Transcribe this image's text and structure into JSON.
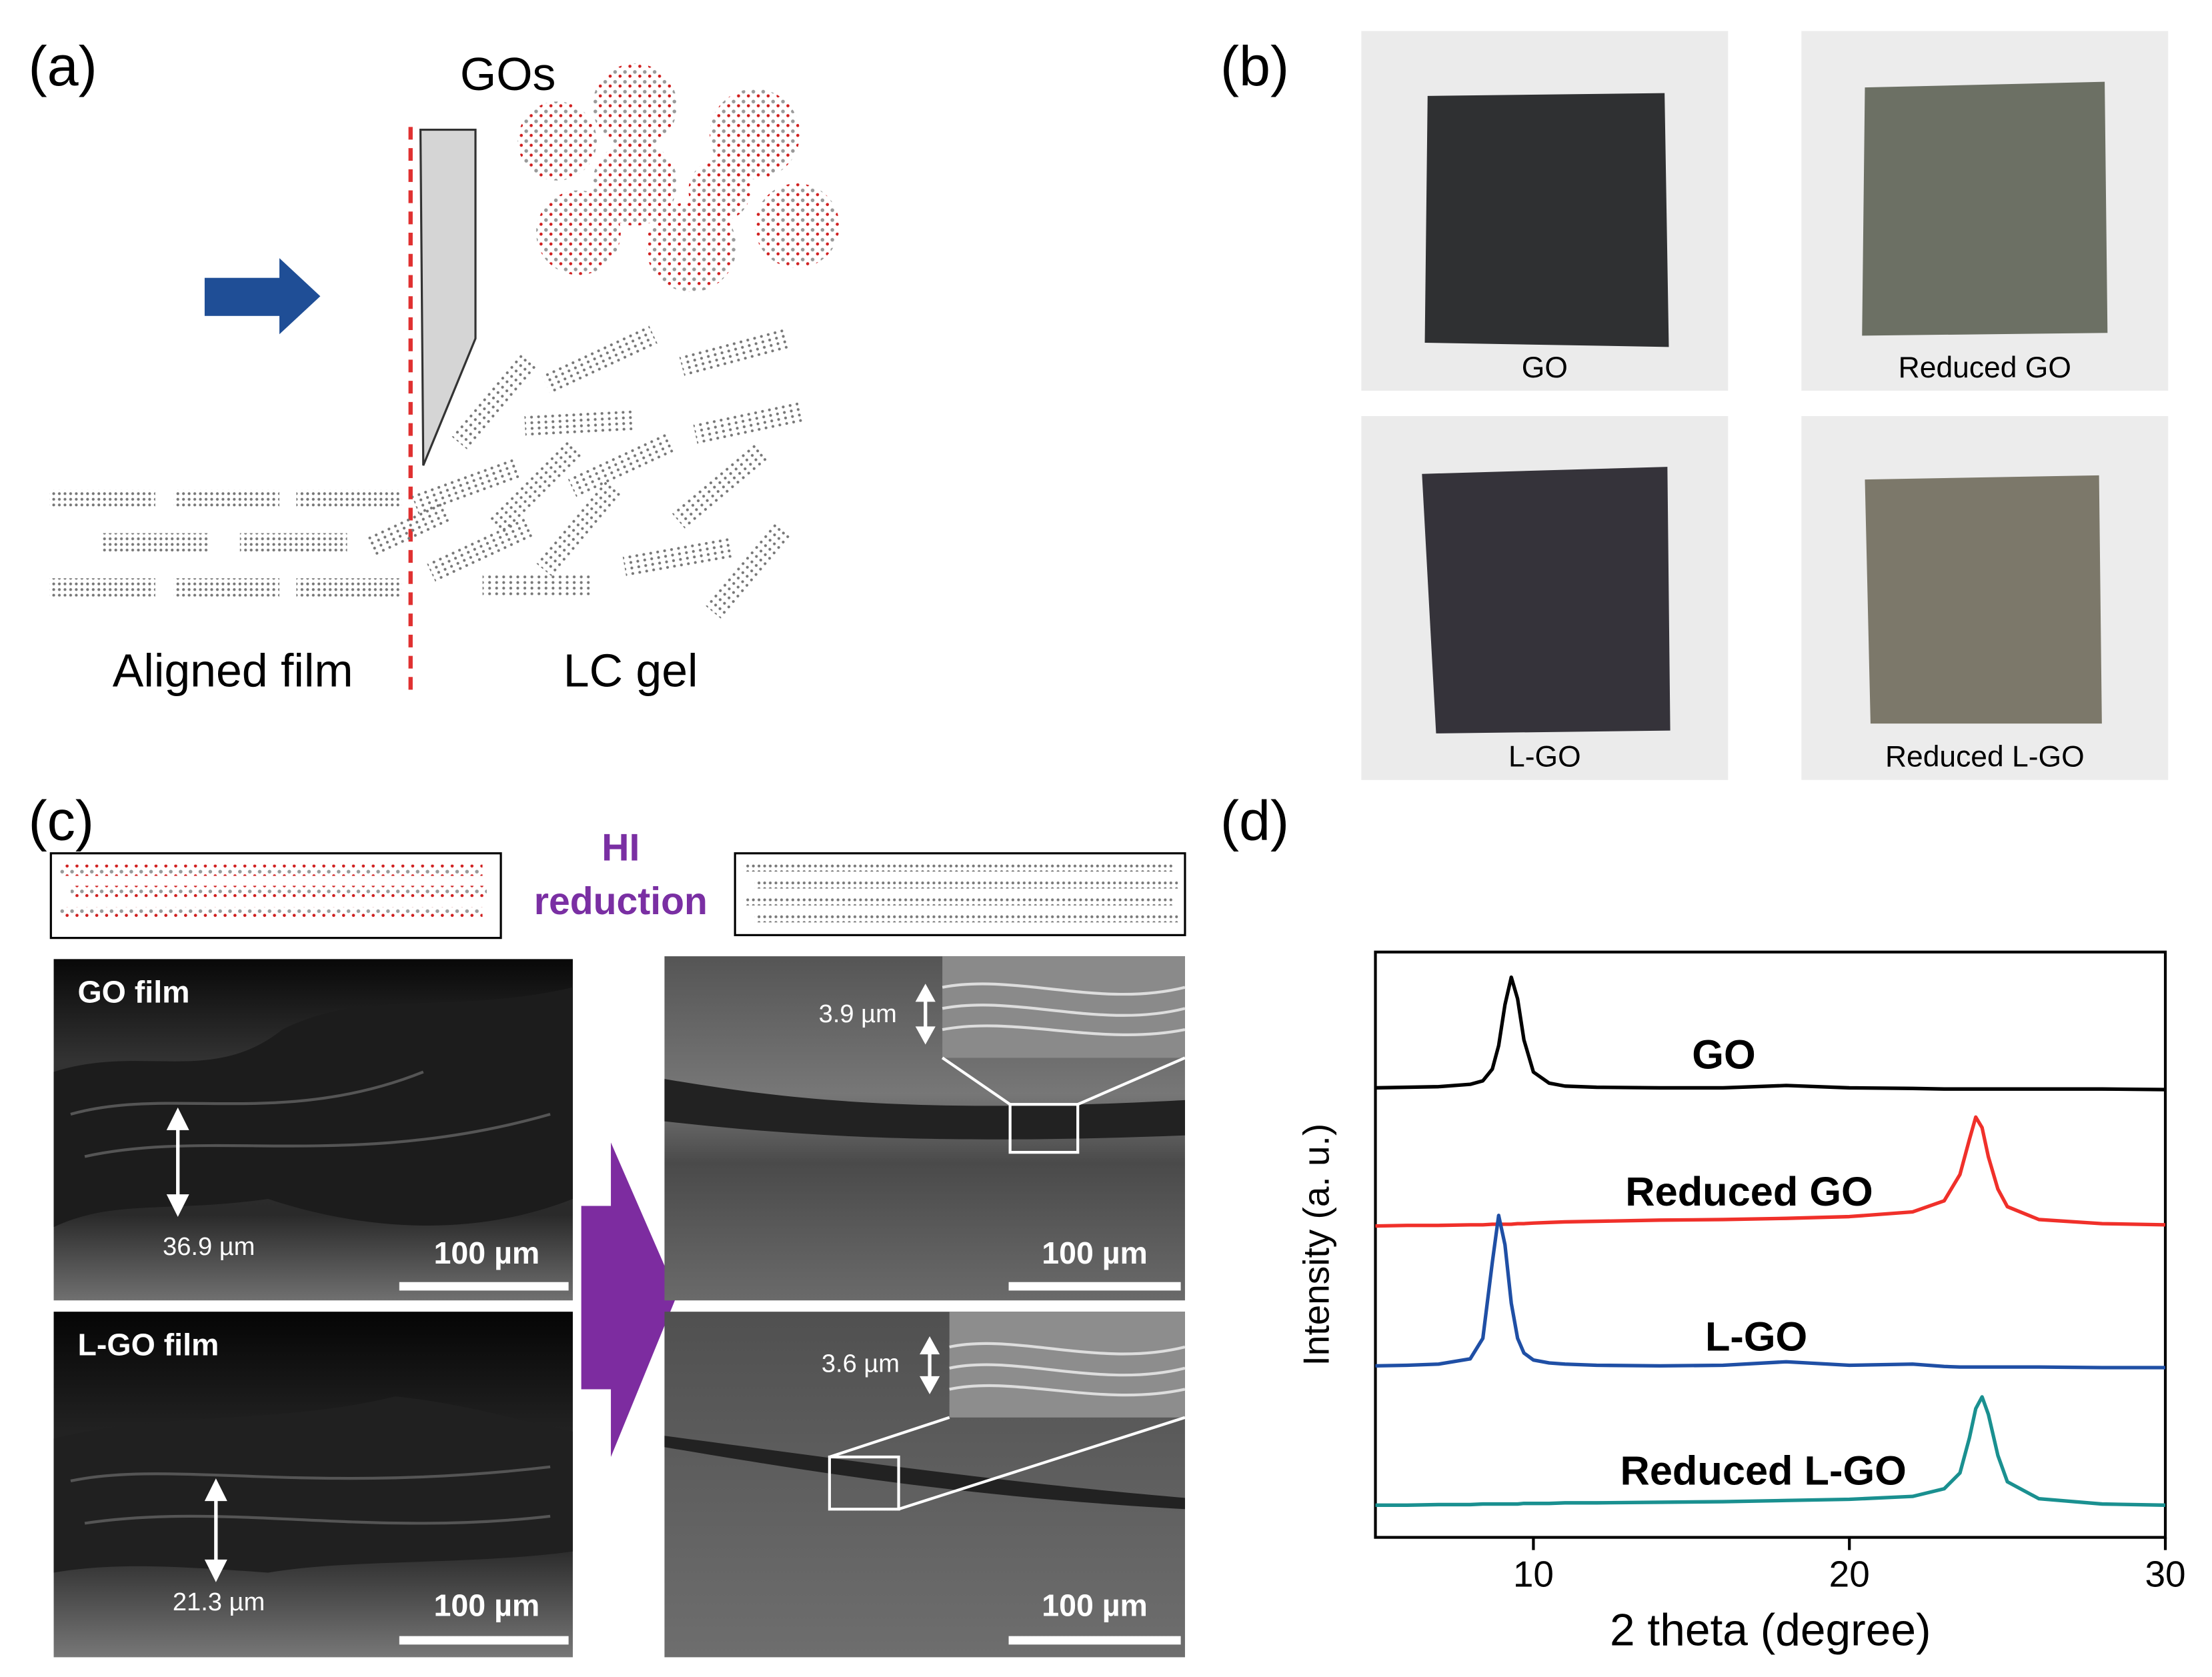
{
  "panel_labels": [
    "(a)",
    "(b)",
    "(c)",
    "(d)"
  ],
  "panel_a": {
    "top_label": "GOs",
    "left_label": "Aligned film",
    "right_label": "LC gel"
  },
  "panel_b": {
    "photos": [
      "GO",
      "Reduced GO",
      "L-GO",
      "Reduced L-GO"
    ]
  },
  "panel_c": {
    "process": [
      "HI",
      "reduction"
    ],
    "images": [
      {
        "title": "GO film",
        "thickness": "36.9 µm",
        "scale": "100 µm"
      },
      {
        "title": "L-GO film",
        "thickness": "21.3 µm",
        "scale": "100 µm"
      },
      {
        "thickness": "3.9 µm",
        "scale": "100 µm"
      },
      {
        "thickness": "3.6 µm",
        "scale": "100 µm"
      }
    ]
  },
  "chart_data": {
    "type": "line",
    "xlabel": "2 theta (degree)",
    "ylabel": "Intensity (a. u.)",
    "xlim": [
      5,
      30
    ],
    "xticks": [
      10,
      20,
      30
    ],
    "ylim": [
      0,
      100
    ],
    "x": [
      5,
      6,
      7,
      8,
      8.4,
      8.7,
      8.9,
      9.1,
      9.3,
      9.5,
      9.7,
      10,
      10.5,
      11,
      12,
      14,
      16,
      18,
      20,
      22,
      23,
      23.5,
      23.8,
      24,
      24.2,
      24.4,
      24.7,
      25,
      26,
      28,
      30
    ],
    "series": [
      {
        "name": "GO",
        "color": "#000000",
        "values": [
          76.8,
          76.9,
          77.0,
          77.4,
          78,
          80,
          84,
          91,
          95.7,
          92,
          85,
          79.5,
          77.6,
          77.1,
          76.9,
          76.8,
          76.8,
          77.2,
          76.8,
          76.7,
          76.6,
          76.6,
          76.6,
          76.6,
          76.6,
          76.6,
          76.6,
          76.6,
          76.6,
          76.6,
          76.5
        ]
      },
      {
        "name": "Reduced GO",
        "color": "#f0302a",
        "values": [
          53.2,
          53.3,
          53.3,
          53.4,
          53.4,
          53.5,
          53.5,
          53.5,
          53.5,
          53.6,
          53.6,
          53.7,
          53.8,
          53.9,
          54,
          54.2,
          54.3,
          54.5,
          54.8,
          55.6,
          57.5,
          62,
          68,
          71.8,
          70,
          65,
          59.5,
          56.5,
          54.3,
          53.6,
          53.4
        ]
      },
      {
        "name": "L-GO",
        "color": "#1f4fa5",
        "values": [
          29.3,
          29.4,
          29.6,
          30.5,
          34,
          47,
          55,
          50,
          40,
          34,
          31.5,
          30.3,
          29.8,
          29.6,
          29.4,
          29.3,
          29.4,
          30,
          29.4,
          29.6,
          29.2,
          29.1,
          29.1,
          29.1,
          29.1,
          29.1,
          29.1,
          29.1,
          29.1,
          29.0,
          29.0
        ]
      },
      {
        "name": "Reduced L-GO",
        "color": "#1a9090",
        "values": [
          5.5,
          5.5,
          5.6,
          5.6,
          5.7,
          5.7,
          5.7,
          5.7,
          5.7,
          5.7,
          5.8,
          5.8,
          5.8,
          5.9,
          5.9,
          6,
          6.1,
          6.3,
          6.5,
          7,
          8.3,
          11,
          17,
          22,
          24,
          21,
          14,
          9.5,
          6.6,
          5.7,
          5.5
        ]
      }
    ]
  }
}
